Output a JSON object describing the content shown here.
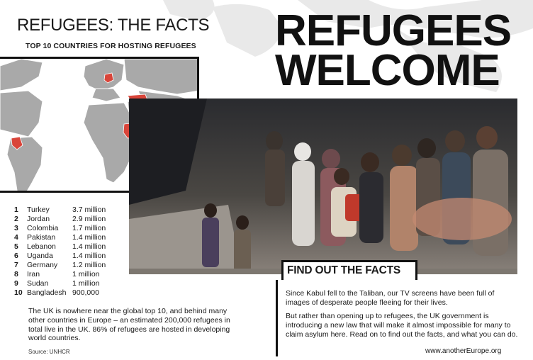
{
  "left": {
    "title": "REFUGEES: THE FACTS",
    "subtitle": "TOP 10 COUNTRIES FOR HOSTING REFUGEES",
    "countries": [
      {
        "rank": "1",
        "country": "Turkey",
        "value": "3.7 million"
      },
      {
        "rank": "2",
        "country": "Jordan",
        "value": "2.9 million"
      },
      {
        "rank": "3",
        "country": "Colombia",
        "value": "1.7 million"
      },
      {
        "rank": "4",
        "country": "Pakistan",
        "value": "1.4 million"
      },
      {
        "rank": "5",
        "country": "Lebanon",
        "value": "1.4 million"
      },
      {
        "rank": "6",
        "country": "Uganda",
        "value": "1.4 million"
      },
      {
        "rank": "7",
        "country": "Germany",
        "value": "1.2 million"
      },
      {
        "rank": "8",
        "country": "Iran",
        "value": "1 million"
      },
      {
        "rank": "9",
        "country": "Sudan",
        "value": "1 million"
      },
      {
        "rank": "10",
        "country": "Bangladesh",
        "value": "900,000"
      }
    ],
    "uk_paragraph": "The UK is nowhere near the global top 10, and behind many other countries in Europe – an estimated 200,000 refugees in total live in the UK. 86% of refugees are hosted in developing world countries.",
    "source": "Source: UNHCR"
  },
  "right": {
    "headline_line1": "REFUGEES",
    "headline_line2": "WELCOME",
    "find_out_title": "FIND OUT THE FACTS",
    "paragraph1": "Since Kabul fell to the Taliban, our TV screens have been full of images of desperate people fleeing for their lives.",
    "paragraph2": "But rather than opening up to refugees, the UK government is introducing a new law that will make it almost impossible for many to claim asylum here. Read on to find out the facts, and what you can do.",
    "website": "www.anotherEurope.org"
  },
  "colors": {
    "highlight_red": "#d9453a",
    "land_grey": "#a9a9a9",
    "text": "#1a1a1a"
  }
}
